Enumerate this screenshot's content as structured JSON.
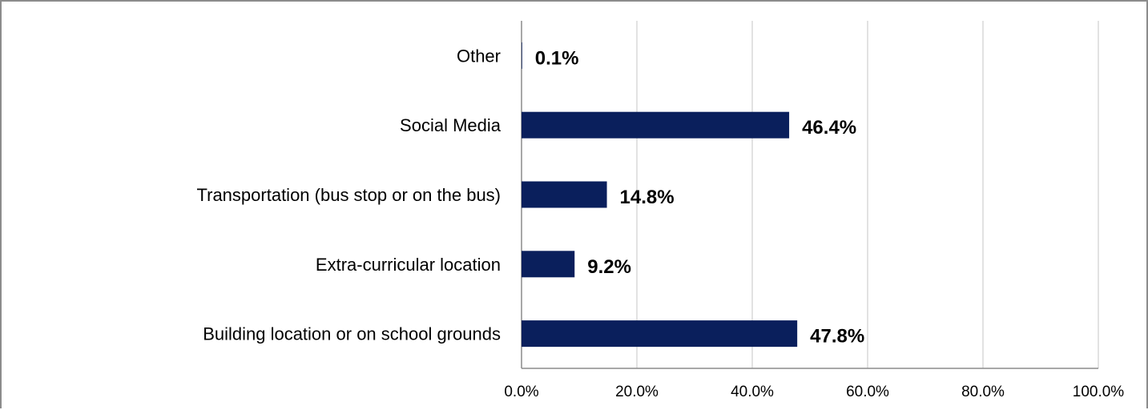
{
  "chart_data": {
    "type": "bar",
    "orientation": "horizontal",
    "categories": [
      "Other",
      "Social Media",
      "Transportation (bus stop or on the bus)",
      "Extra-curricular location",
      "Building location or on school grounds"
    ],
    "values": [
      0.1,
      46.4,
      14.8,
      9.2,
      47.8
    ],
    "data_labels": [
      "0.1%",
      "46.4%",
      "14.8%",
      "9.2%",
      "47.8%"
    ],
    "x_ticks": [
      "0.0%",
      "20.0%",
      "40.0%",
      "60.0%",
      "80.0%",
      "100.0%"
    ],
    "xlim": [
      0,
      100
    ],
    "title": "",
    "xlabel": "",
    "ylabel": "",
    "grid": "vertical",
    "legend": "none",
    "colors": {
      "bar": "#0a1f5c",
      "grid": "#d9d9d9",
      "axis": "#8c8c8c",
      "frame": "#8c8c8c"
    }
  }
}
